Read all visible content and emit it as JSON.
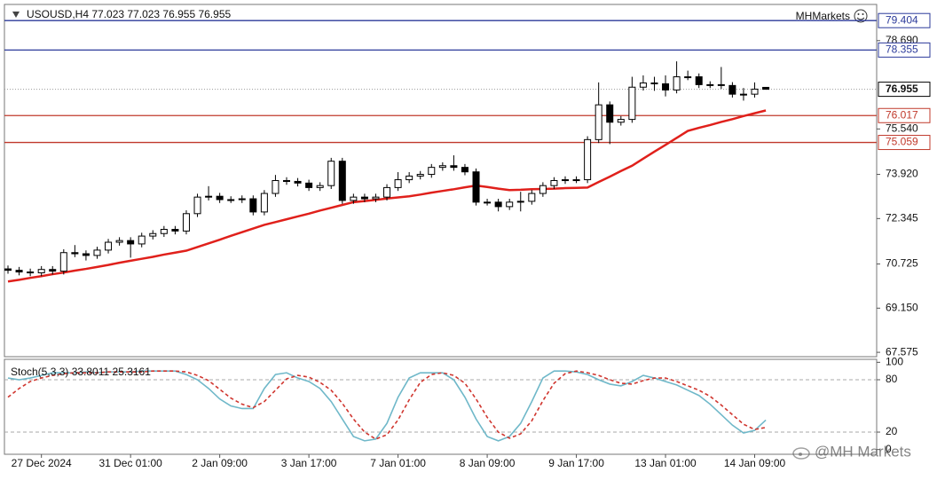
{
  "chart_data": [
    {
      "type": "candlestick",
      "title": "USOUSD,H4  77.023 77.023 76.955 76.955",
      "brand": "MHMarkets",
      "categories": [
        null,
        null,
        null,
        "27 Dec 2024",
        null,
        null,
        null,
        null,
        null,
        null,
        null,
        "31 Dec 01:00",
        null,
        null,
        null,
        null,
        null,
        null,
        null,
        "2 Jan 09:00",
        null,
        null,
        null,
        null,
        null,
        null,
        null,
        "3 Jan 17:00",
        null,
        null,
        null,
        null,
        null,
        null,
        null,
        "7 Jan 01:00",
        null,
        null,
        null,
        null,
        null,
        null,
        null,
        "8 Jan 09:00",
        null,
        null,
        null,
        null,
        null,
        null,
        null,
        "9 Jan 17:00",
        null,
        null,
        null,
        null,
        null,
        null,
        null,
        "13 Jan 01:00",
        null,
        null,
        null,
        null,
        null,
        null,
        null,
        "14 Jan 09:00",
        null
      ],
      "open": [
        70.55,
        70.5,
        70.44,
        70.41,
        70.53,
        70.47,
        71.13,
        71.09,
        71.03,
        71.22,
        71.5,
        71.56,
        71.44,
        71.72,
        71.81,
        71.96,
        71.9,
        72.52,
        73.11,
        73.14,
        73.02,
        73.02,
        73.05,
        72.58,
        73.24,
        73.7,
        73.67,
        73.61,
        73.45,
        73.52,
        74.39,
        72.99,
        73.11,
        73.05,
        73.11,
        73.45,
        73.73,
        73.86,
        73.92,
        74.17,
        74.23,
        74.17,
        74.01,
        72.93,
        72.93,
        72.77,
        72.93,
        72.96,
        73.24,
        73.52,
        73.7,
        73.73,
        73.73,
        75.16,
        76.4,
        75.78,
        75.88,
        77.03,
        77.18,
        77.15,
        76.93,
        77.4,
        77.4,
        77.12,
        77.12,
        77.09,
        76.78,
        76.78,
        77.023
      ],
      "high": [
        70.67,
        70.62,
        70.56,
        70.65,
        70.65,
        71.25,
        71.4,
        71.21,
        71.34,
        71.62,
        71.68,
        71.68,
        71.84,
        71.93,
        72.08,
        72.08,
        72.64,
        73.23,
        73.5,
        73.26,
        73.14,
        73.17,
        73.17,
        73.36,
        73.9,
        73.82,
        73.79,
        73.73,
        73.64,
        74.51,
        74.51,
        73.23,
        73.23,
        73.23,
        73.57,
        74.0,
        74.0,
        74.04,
        74.29,
        74.35,
        74.6,
        74.29,
        74.13,
        73.05,
        73.05,
        73.05,
        73.3,
        73.36,
        73.64,
        73.82,
        73.85,
        73.85,
        75.28,
        77.2,
        76.52,
        76.0,
        77.4,
        77.45,
        77.4,
        77.45,
        77.95,
        77.62,
        77.52,
        77.24,
        77.75,
        77.21,
        77.0,
        77.2,
        77.023
      ],
      "low": [
        70.38,
        70.32,
        70.29,
        70.29,
        70.35,
        70.35,
        70.97,
        70.85,
        70.91,
        71.1,
        71.38,
        70.95,
        71.32,
        71.6,
        71.69,
        71.78,
        71.78,
        72.4,
        72.99,
        72.9,
        72.9,
        72.9,
        72.46,
        72.46,
        73.12,
        73.55,
        73.49,
        73.33,
        73.33,
        73.4,
        72.87,
        72.87,
        72.93,
        72.93,
        72.99,
        73.33,
        73.61,
        73.74,
        73.8,
        74.05,
        74.05,
        73.89,
        72.81,
        72.81,
        72.6,
        72.65,
        72.6,
        72.84,
        73.12,
        73.4,
        73.58,
        73.61,
        73.61,
        75.04,
        75.0,
        75.66,
        75.76,
        76.91,
        76.9,
        76.7,
        76.81,
        77.28,
        77.0,
        77.0,
        76.97,
        76.66,
        76.55,
        76.66,
        76.955
      ],
      "close": [
        70.5,
        70.44,
        70.41,
        70.53,
        70.47,
        71.13,
        71.09,
        71.03,
        71.22,
        71.5,
        71.56,
        71.44,
        71.72,
        71.81,
        71.96,
        71.9,
        72.52,
        73.11,
        73.14,
        73.02,
        73.02,
        73.05,
        72.58,
        73.24,
        73.7,
        73.67,
        73.61,
        73.45,
        73.52,
        74.39,
        72.99,
        73.11,
        73.05,
        73.11,
        73.45,
        73.73,
        73.86,
        73.92,
        74.17,
        74.23,
        74.17,
        74.01,
        72.93,
        72.93,
        72.77,
        72.93,
        72.96,
        73.24,
        73.52,
        73.7,
        73.73,
        73.73,
        75.16,
        76.4,
        75.78,
        75.88,
        77.03,
        77.18,
        77.15,
        76.93,
        77.4,
        77.4,
        77.12,
        77.12,
        77.09,
        76.78,
        76.78,
        76.96,
        76.955
      ],
      "up_color": "#ffffff",
      "down_color": "#000000",
      "ma": {
        "color": "#e0201b",
        "values": [
          70.1,
          70.16,
          70.23,
          70.29,
          70.36,
          70.42,
          70.49,
          70.55,
          70.62,
          70.69,
          70.77,
          70.84,
          70.91,
          70.98,
          71.06,
          71.13,
          71.2,
          71.33,
          71.46,
          71.59,
          71.73,
          71.86,
          71.99,
          72.12,
          72.22,
          72.32,
          72.42,
          72.52,
          72.63,
          72.73,
          72.83,
          72.93,
          72.97,
          73.01,
          73.06,
          73.1,
          73.14,
          73.2,
          73.27,
          73.33,
          73.39,
          73.46,
          73.52,
          73.47,
          73.41,
          73.36,
          73.37,
          73.39,
          73.4,
          73.41,
          73.43,
          73.44,
          73.45,
          73.65,
          73.84,
          74.04,
          74.23,
          74.48,
          74.73,
          74.97,
          75.22,
          75.47,
          75.58,
          75.68,
          75.79,
          75.89,
          76.0,
          76.1,
          76.2
        ]
      },
      "levels": [
        {
          "value": 79.404,
          "color": "#2b3a9a"
        },
        {
          "value": 78.355,
          "color": "#2b3a9a"
        },
        {
          "value": 76.017,
          "color": "#c0392b"
        },
        {
          "value": 75.059,
          "color": "#c0392b"
        }
      ],
      "ylim": [
        67.42,
        79.98
      ],
      "yticks": [
        {
          "value": 78.69,
          "label": "78.690"
        },
        {
          "value": 75.54,
          "label": "75.540"
        },
        {
          "value": 73.92,
          "label": "73.920"
        },
        72.345,
        70.725,
        {
          "value": 69.15,
          "label": "69.150"
        },
        67.575
      ]
    },
    {
      "type": "line",
      "title": "Stoch(5,3,3) 33.8011 25.3161",
      "series": [
        {
          "color": "#6fb8c9",
          "values": [
            82,
            80,
            82,
            85,
            88,
            88,
            88,
            89,
            88,
            89,
            89,
            89,
            90,
            90,
            90,
            90,
            86,
            80,
            70,
            58,
            50,
            47,
            47,
            70,
            86,
            88,
            82,
            78,
            70,
            55,
            35,
            15,
            10,
            12,
            30,
            60,
            82,
            88,
            88,
            88,
            80,
            60,
            35,
            15,
            10,
            15,
            30,
            55,
            82,
            90,
            90,
            89,
            86,
            80,
            75,
            73,
            78,
            85,
            82,
            78,
            74,
            68,
            62,
            52,
            40,
            28,
            19,
            22,
            33.8011
          ]
        },
        {
          "color": "#d0362f",
          "dashed": true,
          "values": [
            60,
            70,
            78,
            82,
            85,
            87,
            88,
            88,
            88,
            89,
            89,
            89,
            89,
            90,
            90,
            90,
            89,
            85,
            79,
            69,
            59,
            52,
            48,
            55,
            68,
            81,
            85,
            83,
            77,
            68,
            53,
            35,
            20,
            12,
            17,
            34,
            57,
            77,
            86,
            88,
            85,
            76,
            58,
            37,
            20,
            13,
            18,
            33,
            56,
            76,
            87,
            90,
            88,
            85,
            80,
            76,
            75,
            79,
            82,
            82,
            78,
            73,
            68,
            61,
            51,
            40,
            29,
            23,
            25.3161
          ]
        }
      ],
      "levels": [
        20,
        80
      ],
      "ylim": [
        -5.4,
        103.4
      ],
      "yticks": [
        0,
        20,
        80,
        100
      ]
    }
  ],
  "watermark": "@MH Markets"
}
